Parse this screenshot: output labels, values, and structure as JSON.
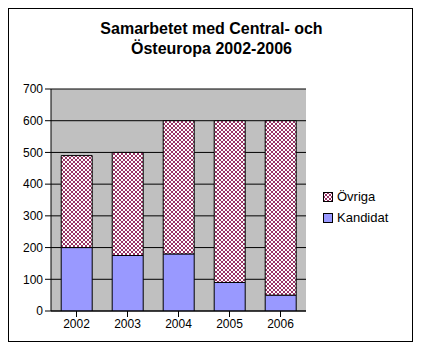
{
  "chart_data": {
    "type": "bar",
    "title": "Samarbetet med Central- och Östeuropa 2002-2006",
    "categories": [
      "2002",
      "2003",
      "2004",
      "2005",
      "2006"
    ],
    "series": [
      {
        "name": "Kandidat",
        "color": "#9999ff",
        "values": [
          200,
          175,
          180,
          90,
          50
        ]
      },
      {
        "name": "Övriga",
        "color": "#993366",
        "values": [
          290,
          325,
          420,
          510,
          550
        ]
      }
    ],
    "stacked": true,
    "ylim": [
      0,
      700
    ],
    "yticks": [
      0,
      100,
      200,
      300,
      400,
      500,
      600,
      700
    ],
    "grid": true,
    "legend": "right"
  }
}
